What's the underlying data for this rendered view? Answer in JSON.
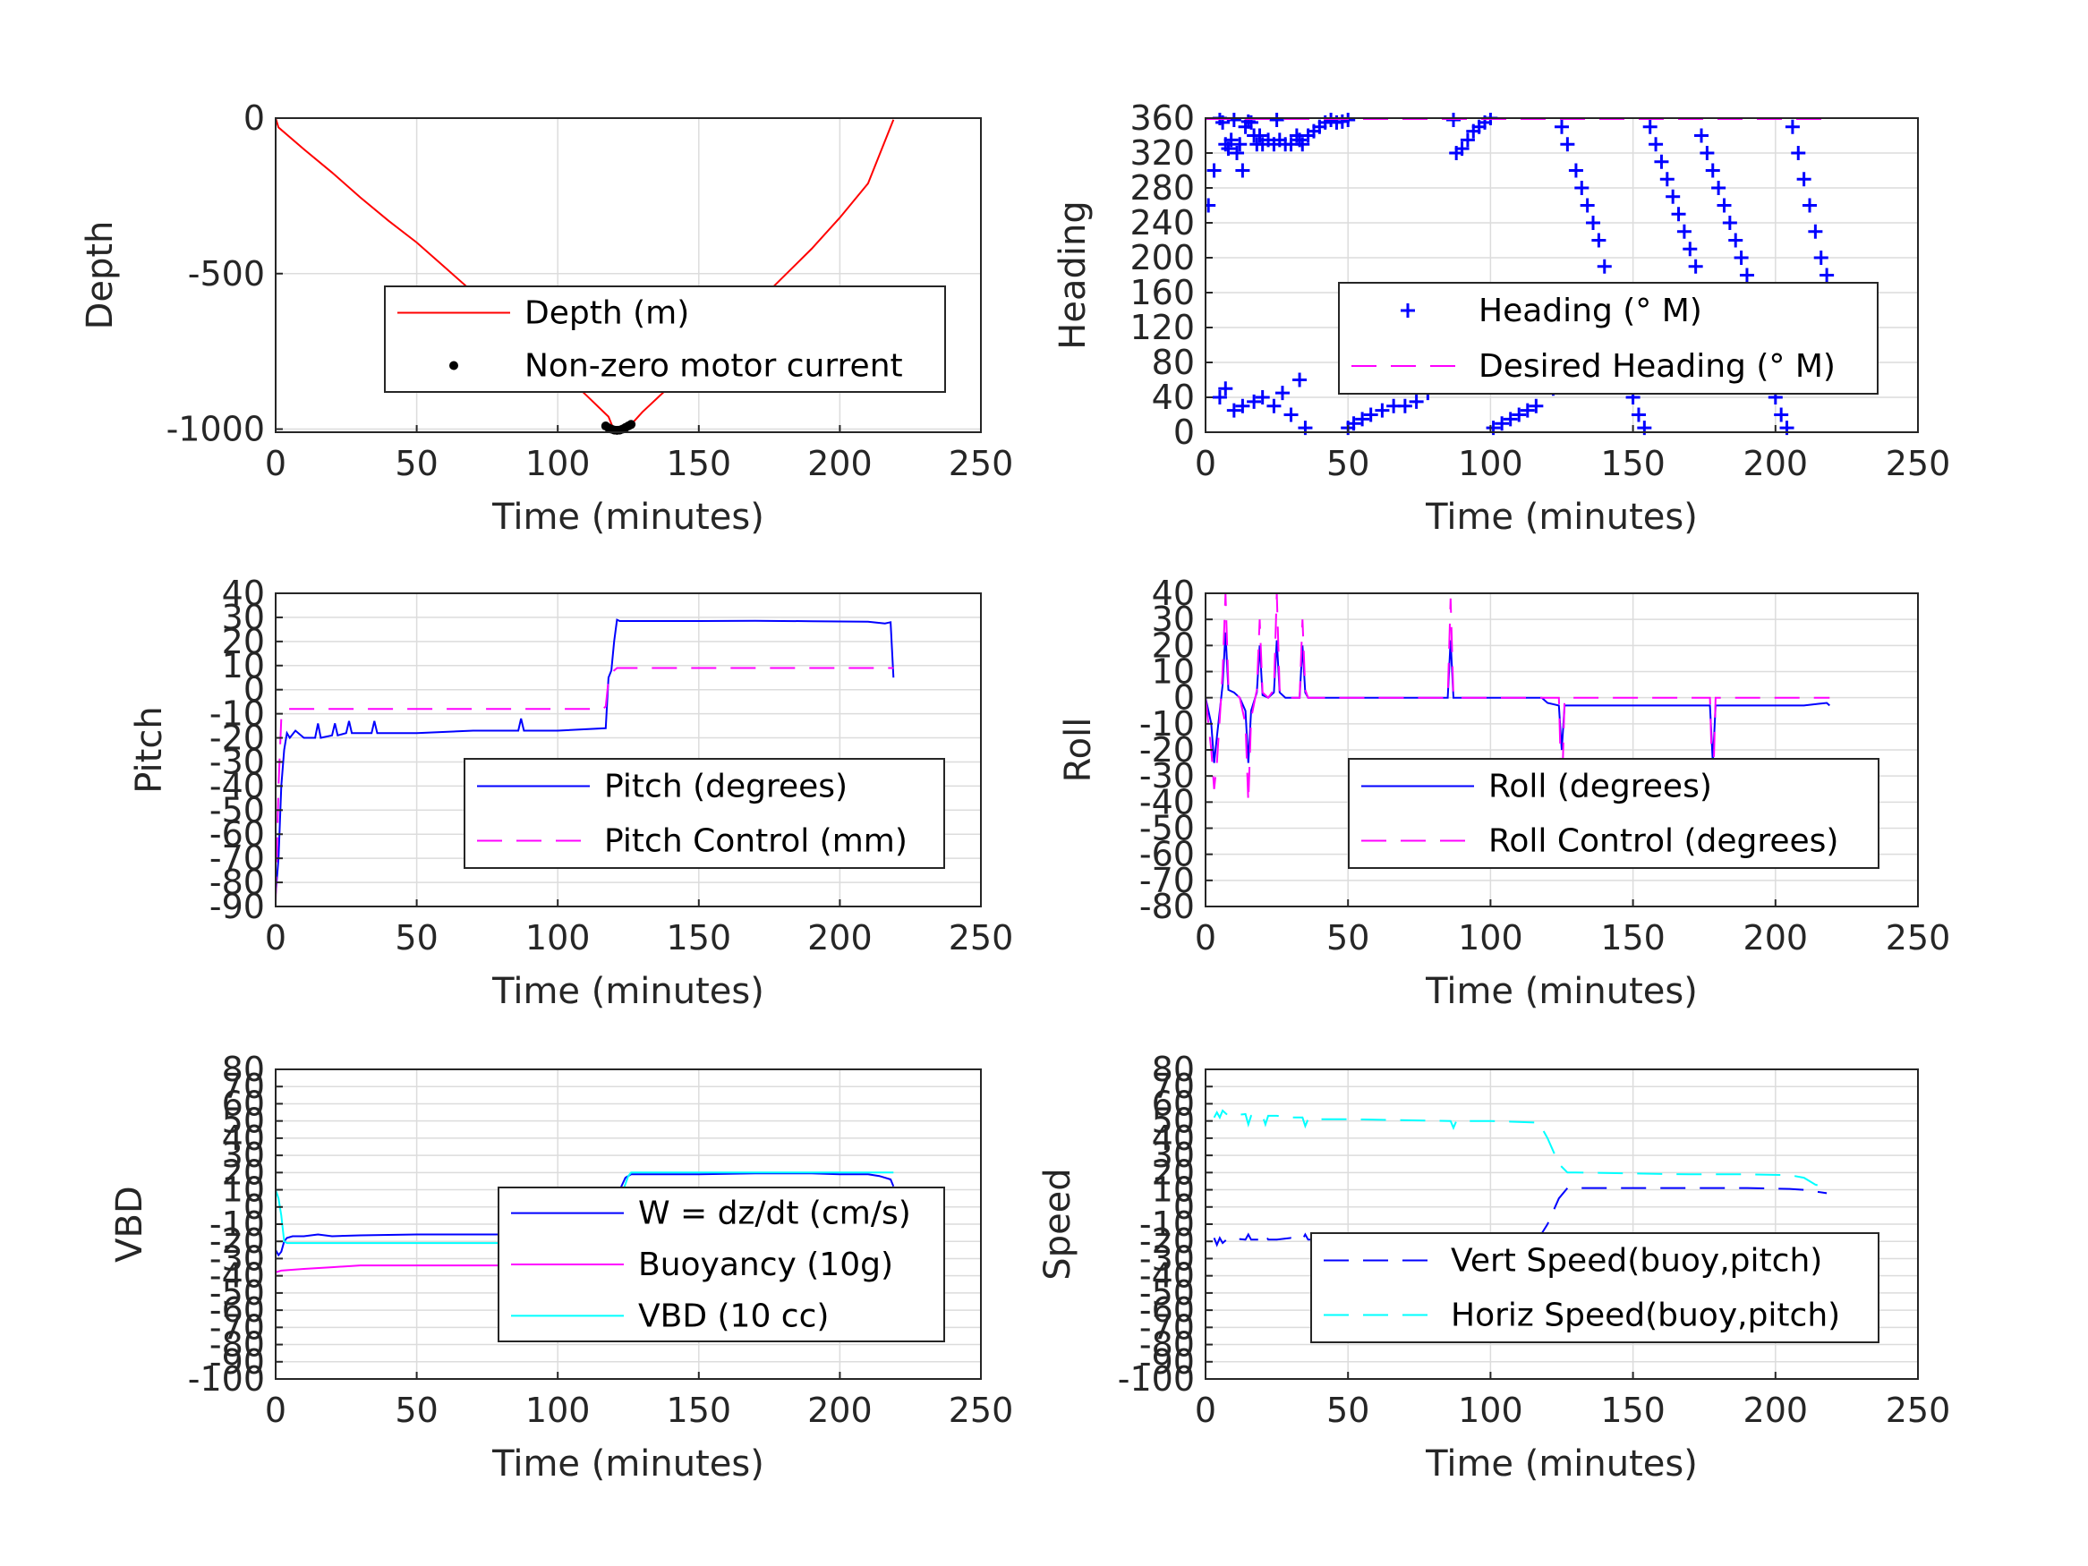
{
  "chart_data": [
    {
      "id": "depth",
      "type": "line",
      "xlabel": "Time (minutes)",
      "ylabel": "Depth",
      "xlim": [
        0,
        250
      ],
      "ylim": [
        -1010,
        0
      ],
      "xticks": [
        0,
        50,
        100,
        150,
        200,
        250
      ],
      "yticks": [
        0,
        -500,
        -1000
      ],
      "grid": true,
      "legend_placement": "center-right",
      "series": [
        {
          "name": "Depth (m)",
          "style": "line",
          "color": "#ff0000",
          "x": [
            0,
            1,
            10,
            20,
            30,
            40,
            50,
            60,
            70,
            80,
            90,
            100,
            110,
            118,
            120,
            123,
            126,
            130,
            140,
            150,
            160,
            170,
            180,
            190,
            200,
            210,
            219
          ],
          "y": [
            0,
            -30,
            -100,
            -175,
            -255,
            -330,
            -400,
            -480,
            -560,
            -640,
            -720,
            -805,
            -890,
            -960,
            -1005,
            -1000,
            -985,
            -945,
            -860,
            -770,
            -690,
            -600,
            -510,
            -420,
            -320,
            -210,
            -5
          ]
        },
        {
          "name": "Non-zero motor current",
          "style": "dots",
          "color": "#000000",
          "x": [
            117,
            118,
            119,
            120,
            121,
            122,
            123,
            124,
            125,
            126
          ],
          "y": [
            -990,
            -996,
            -1000,
            -1003,
            -1004,
            -1003,
            -1000,
            -995,
            -990,
            -985
          ]
        }
      ]
    },
    {
      "id": "heading",
      "type": "scatter",
      "xlabel": "Time (minutes)",
      "ylabel": "Heading",
      "xlim": [
        0,
        250
      ],
      "ylim": [
        0,
        360
      ],
      "xticks": [
        0,
        50,
        100,
        150,
        200,
        250
      ],
      "yticks": [
        0,
        40,
        80,
        120,
        160,
        200,
        240,
        280,
        320,
        360
      ],
      "grid": true,
      "legend_placement": "center-right",
      "series": [
        {
          "name": "Heading (° M)",
          "style": "plus",
          "color": "#0000ff",
          "x": [
            1,
            3,
            5,
            6,
            7,
            8,
            9,
            10,
            11,
            12,
            13,
            14,
            15,
            16,
            17,
            18,
            19,
            20,
            22,
            24,
            25,
            26,
            28,
            30,
            32,
            33,
            34,
            36,
            38,
            40,
            42,
            44,
            46,
            48,
            50,
            5,
            7,
            10,
            13,
            17,
            20,
            24,
            27,
            30,
            33,
            35,
            50,
            52,
            55,
            58,
            62,
            66,
            70,
            74,
            78,
            82,
            85,
            87,
            88,
            90,
            92,
            94,
            96,
            98,
            100,
            101,
            104,
            107,
            110,
            113,
            116,
            118,
            120,
            122,
            125,
            127,
            130,
            132,
            134,
            136,
            138,
            140,
            142,
            144,
            146,
            148,
            150,
            152,
            154,
            156,
            158,
            160,
            162,
            164,
            166,
            168,
            170,
            172,
            174,
            176,
            178,
            180,
            182,
            184,
            186,
            188,
            190,
            192,
            194,
            196,
            198,
            200,
            202,
            204,
            206,
            208,
            210,
            212,
            214,
            216,
            218
          ],
          "y": [
            260,
            300,
            360,
            355,
            330,
            325,
            335,
            358,
            320,
            330,
            300,
            350,
            356,
            355,
            340,
            330,
            340,
            330,
            335,
            330,
            358,
            335,
            330,
            330,
            340,
            335,
            330,
            340,
            345,
            350,
            355,
            358,
            355,
            356,
            358,
            40,
            50,
            25,
            30,
            35,
            40,
            30,
            45,
            20,
            60,
            5,
            5,
            10,
            15,
            20,
            25,
            30,
            30,
            35,
            45,
            55,
            60,
            358,
            320,
            325,
            335,
            345,
            350,
            355,
            360,
            5,
            10,
            15,
            20,
            25,
            30,
            60,
            80,
            50,
            350,
            330,
            300,
            280,
            260,
            240,
            220,
            190,
            160,
            130,
            100,
            70,
            40,
            20,
            5,
            350,
            330,
            310,
            290,
            270,
            250,
            230,
            210,
            190,
            340,
            320,
            300,
            280,
            260,
            240,
            220,
            200,
            180,
            160,
            130,
            100,
            70,
            40,
            20,
            5,
            350,
            320,
            290,
            260,
            230,
            200,
            180
          ],
          "note_extra": ""
        },
        {
          "name": "Desired Heading (° M)",
          "style": "dashed",
          "color": "#ff00ff",
          "x": [
            0,
            220
          ],
          "y": [
            359,
            359
          ]
        }
      ]
    },
    {
      "id": "pitch",
      "type": "line",
      "xlabel": "Time (minutes)",
      "ylabel": "Pitch",
      "xlim": [
        0,
        250
      ],
      "ylim": [
        -90,
        40
      ],
      "xticks": [
        0,
        50,
        100,
        150,
        200,
        250
      ],
      "yticks": [
        40,
        30,
        20,
        10,
        0,
        -10,
        -20,
        -30,
        -40,
        -50,
        -60,
        -70,
        -80,
        -90
      ],
      "grid": true,
      "legend_placement": "bottom-right",
      "series": [
        {
          "name": "Pitch (degrees)",
          "style": "line",
          "color": "#0000ff",
          "x": [
            0,
            1,
            2,
            3,
            4,
            5,
            7,
            10,
            14,
            15,
            16,
            20,
            21,
            22,
            25,
            26,
            27,
            34,
            35,
            36,
            50,
            70,
            86,
            87,
            88,
            100,
            117,
            118,
            119,
            120,
            121,
            122,
            130,
            150,
            170,
            190,
            210,
            216,
            218,
            219
          ],
          "y": [
            -85,
            -70,
            -40,
            -25,
            -18,
            -20,
            -17,
            -20,
            -20,
            -14,
            -20,
            -19,
            -14,
            -19,
            -18,
            -13,
            -18,
            -18,
            -13,
            -18,
            -18,
            -17,
            -17,
            -12,
            -17,
            -17,
            -16,
            5,
            8,
            20,
            29,
            28.5,
            28.5,
            28.5,
            28.6,
            28.4,
            28.2,
            27.5,
            28,
            5
          ]
        },
        {
          "name": "Pitch Control (mm)",
          "style": "dashed",
          "color": "#ff00ff",
          "x": [
            0,
            1,
            2,
            3,
            4,
            116,
            117,
            118,
            120,
            121,
            219
          ],
          "y": [
            -88,
            -40,
            -12,
            -9,
            -8,
            -8,
            -7,
            4,
            8,
            9,
            9
          ]
        }
      ]
    },
    {
      "id": "roll",
      "type": "line",
      "xlabel": "Time (minutes)",
      "ylabel": "Roll",
      "xlim": [
        0,
        250
      ],
      "ylim": [
        -80,
        40
      ],
      "xticks": [
        0,
        50,
        100,
        150,
        200,
        250
      ],
      "yticks": [
        40,
        30,
        20,
        10,
        0,
        -10,
        -20,
        -30,
        -40,
        -50,
        -60,
        -70,
        -80
      ],
      "grid": true,
      "legend_placement": "bottom-right",
      "series": [
        {
          "name": "Roll (degrees)",
          "style": "line",
          "color": "#0000ff",
          "x": [
            0,
            2,
            3,
            4,
            5,
            6,
            7,
            8,
            10,
            12,
            14,
            15,
            16,
            18,
            19,
            20,
            22,
            24,
            25,
            26,
            28,
            33,
            34,
            35,
            36,
            40,
            60,
            85,
            86,
            87,
            100,
            118,
            120,
            124,
            125,
            126,
            127,
            140,
            170,
            177,
            178,
            179,
            190,
            210,
            218,
            219
          ],
          "y": [
            0,
            -10,
            -25,
            -15,
            -5,
            5,
            25,
            3,
            2,
            0,
            -5,
            -25,
            -5,
            2,
            20,
            1,
            0,
            2,
            22,
            2,
            0,
            0,
            20,
            2,
            0,
            0,
            0,
            0,
            22,
            0,
            0,
            0,
            -2,
            -3,
            -20,
            -3,
            -3,
            -3,
            -3,
            -3,
            -25,
            -3,
            -3,
            -3,
            -2,
            -3
          ]
        },
        {
          "name": "Roll Control (degrees)",
          "style": "dashed",
          "color": "#ff00ff",
          "x": [
            0,
            2,
            3,
            4,
            5,
            6,
            7,
            8,
            10,
            12,
            14,
            15,
            16,
            18,
            19,
            20,
            22,
            24,
            25,
            26,
            28,
            33,
            34,
            35,
            36,
            40,
            60,
            85,
            86,
            87,
            100,
            124,
            125,
            126,
            127,
            170,
            177,
            178,
            179,
            219
          ],
          "y": [
            0,
            -20,
            -35,
            -25,
            -8,
            10,
            40,
            5,
            2,
            0,
            -10,
            -40,
            -8,
            3,
            30,
            2,
            0,
            3,
            40,
            3,
            0,
            0,
            30,
            3,
            0,
            0,
            0,
            0,
            38,
            0,
            0,
            0,
            -40,
            0,
            0,
            0,
            0,
            -38,
            0,
            0
          ]
        }
      ]
    },
    {
      "id": "vbd",
      "type": "line",
      "xlabel": "Time (minutes)",
      "ylabel": "VBD",
      "xlim": [
        0,
        250
      ],
      "ylim": [
        -100,
        80
      ],
      "xticks": [
        0,
        50,
        100,
        150,
        200,
        250
      ],
      "yticks": [
        80,
        70,
        60,
        50,
        40,
        30,
        20,
        10,
        0,
        -10,
        -20,
        -30,
        -40,
        -50,
        -60,
        -70,
        -80,
        -90,
        -100
      ],
      "grid": true,
      "legend_placement": "bottom-right",
      "series": [
        {
          "name": "W = dz/dt (cm/s)",
          "style": "line",
          "color": "#0000ff",
          "x": [
            0,
            1,
            2,
            3,
            4,
            6,
            10,
            15,
            20,
            30,
            50,
            80,
            100,
            116,
            117,
            120,
            122,
            124,
            126,
            130,
            150,
            170,
            190,
            200,
            210,
            214,
            216,
            218,
            219
          ],
          "y": [
            -25,
            -28,
            -26,
            -20,
            -18,
            -17,
            -17,
            -16,
            -17,
            -16.5,
            -16,
            -16,
            -16,
            -16,
            -14,
            0,
            10,
            17,
            19,
            19,
            19,
            19.5,
            19.5,
            19,
            19,
            18,
            17,
            16,
            12
          ]
        },
        {
          "name": "Buoyancy (10g)",
          "style": "line",
          "color": "#ff00ff",
          "x": [
            0,
            2,
            10,
            20,
            30,
            50,
            100,
            116,
            117,
            120,
            125,
            126,
            130,
            200,
            210,
            219
          ],
          "y": [
            -38,
            -37,
            -36,
            -35,
            -34,
            -34,
            -34,
            -34,
            -33,
            -15,
            8,
            10,
            10,
            10,
            9,
            8
          ]
        },
        {
          "name": "VBD (10 cc)",
          "style": "line",
          "color": "#00ffff",
          "x": [
            0,
            1,
            2,
            3,
            4,
            10,
            50,
            100,
            117,
            120,
            125,
            126,
            130,
            200,
            219
          ],
          "y": [
            10,
            5,
            -5,
            -20,
            -21,
            -21,
            -21,
            -21,
            -20,
            -5,
            18,
            20,
            20,
            20,
            20
          ]
        }
      ]
    },
    {
      "id": "speed",
      "type": "line",
      "xlabel": "Time (minutes)",
      "ylabel": "Speed",
      "xlim": [
        0,
        250
      ],
      "ylim": [
        -100,
        80
      ],
      "xticks": [
        0,
        50,
        100,
        150,
        200,
        250
      ],
      "yticks": [
        80,
        70,
        60,
        50,
        40,
        30,
        20,
        10,
        0,
        -10,
        -20,
        -30,
        -40,
        -50,
        -60,
        -70,
        -80,
        -90,
        -100
      ],
      "grid": true,
      "legend_placement": "bottom-right",
      "series": [
        {
          "name": "Vert Speed(buoy,pitch)",
          "style": "dashed",
          "color": "#0000ff",
          "x": [
            3,
            4,
            5,
            6,
            8,
            14,
            15,
            16,
            20,
            21,
            22,
            25,
            30,
            34,
            35,
            36,
            50,
            86,
            87,
            88,
            100,
            117,
            120,
            124,
            127,
            130,
            150,
            170,
            190,
            205,
            210,
            214,
            218
          ],
          "y": [
            -18,
            -22,
            -18,
            -21,
            -18,
            -19,
            -16,
            -19,
            -19,
            -16,
            -19,
            -19,
            -18,
            -19,
            -16,
            -19,
            -19,
            -18,
            -16,
            -18,
            -18,
            -18,
            -10,
            5,
            11,
            11,
            11,
            11,
            11,
            10.5,
            10,
            9,
            8
          ]
        },
        {
          "name": "Horiz Speed(buoy,pitch)",
          "style": "dashed",
          "color": "#00ffff",
          "x": [
            3,
            4,
            5,
            6,
            8,
            14,
            15,
            16,
            20,
            21,
            22,
            25,
            30,
            34,
            35,
            36,
            50,
            86,
            87,
            88,
            100,
            117,
            120,
            124,
            127,
            130,
            150,
            170,
            190,
            205,
            210,
            214,
            218
          ],
          "y": [
            52,
            55,
            52,
            56,
            53,
            54,
            48,
            53,
            53,
            48,
            53,
            53,
            52,
            52,
            47,
            51,
            51,
            50,
            46,
            50,
            50,
            49,
            40,
            25,
            20,
            20,
            19.5,
            19,
            19,
            18.5,
            17,
            13,
            11
          ]
        }
      ]
    }
  ]
}
